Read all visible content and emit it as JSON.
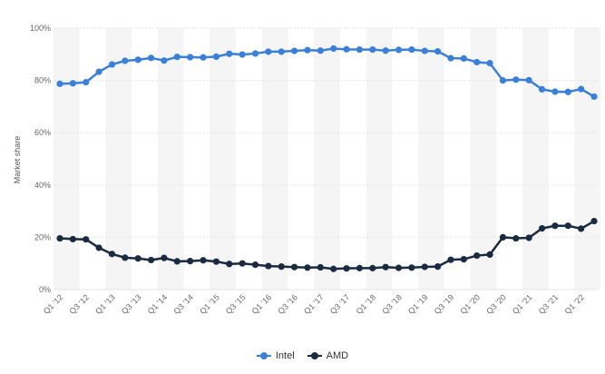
{
  "chart_data": {
    "type": "line",
    "ylabel": "Market share",
    "xlabel": "",
    "title": "",
    "ylim": [
      0,
      100
    ],
    "y_ticks": [
      "0%",
      "20%",
      "40%",
      "60%",
      "80%",
      "100%"
    ],
    "x_tick_labels": [
      "Q1 '12",
      "Q3 '12",
      "Q1 '13",
      "Q3 '13",
      "Q1 '14",
      "Q3 '14",
      "Q1 '15",
      "Q3 '15",
      "Q1 '16",
      "Q3 '16",
      "Q1 '17",
      "Q3 '17",
      "Q1 '18",
      "Q3 '18",
      "Q1 '19",
      "Q3 '19",
      "Q1 '20",
      "Q3 '20",
      "Q1 '21",
      "Q3 '21",
      "Q1 '22"
    ],
    "categories": [
      "Q1 '12",
      "Q2 '12",
      "Q3 '12",
      "Q4 '12",
      "Q1 '13",
      "Q2 '13",
      "Q3 '13",
      "Q4 '13",
      "Q1 '14",
      "Q2 '14",
      "Q3 '14",
      "Q4 '14",
      "Q1 '15",
      "Q2 '15",
      "Q3 '15",
      "Q4 '15",
      "Q1 '16",
      "Q2 '16",
      "Q3 '16",
      "Q4 '16",
      "Q1 '17",
      "Q2 '17",
      "Q3 '17",
      "Q4 '17",
      "Q1 '18",
      "Q2 '18",
      "Q3 '18",
      "Q4 '18",
      "Q1 '19",
      "Q2 '19",
      "Q3 '19",
      "Q4 '19",
      "Q1 '20",
      "Q2 '20",
      "Q3 '20",
      "Q4 '20",
      "Q1 '21",
      "Q2 '21",
      "Q3 '21",
      "Q4 '21",
      "Q1 '22",
      "Q2 '22"
    ],
    "grid": true,
    "legend_position": "bottom-center",
    "series": [
      {
        "name": "Intel",
        "color": "#3b80d8",
        "values": [
          78.7,
          78.9,
          79.3,
          83.3,
          86.1,
          87.5,
          87.9,
          88.6,
          87.6,
          89.0,
          88.9,
          88.8,
          89.1,
          90.2,
          89.9,
          90.3,
          91.0,
          91.0,
          91.3,
          91.6,
          91.4,
          92.2,
          91.9,
          91.8,
          91.8,
          91.4,
          91.7,
          91.8,
          91.3,
          91.1,
          88.5,
          88.4,
          87.0,
          86.6,
          80.0,
          80.3,
          80.1,
          76.6,
          75.7,
          75.6,
          76.7,
          73.8
        ]
      },
      {
        "name": "AMD",
        "color": "#1a2a40",
        "values": [
          19.6,
          19.3,
          19.2,
          16.0,
          13.6,
          12.2,
          11.9,
          11.3,
          12.1,
          10.8,
          10.9,
          11.2,
          10.7,
          9.8,
          10.0,
          9.5,
          9.0,
          8.8,
          8.6,
          8.4,
          8.5,
          7.9,
          8.1,
          8.2,
          8.2,
          8.6,
          8.3,
          8.4,
          8.7,
          8.8,
          11.4,
          11.6,
          13.0,
          13.4,
          20.0,
          19.6,
          19.8,
          23.4,
          24.4,
          24.4,
          23.3,
          26.2
        ]
      }
    ]
  },
  "legend": {
    "items": [
      {
        "label": "Intel",
        "color": "#3b80d8"
      },
      {
        "label": "AMD",
        "color": "#1a2a40"
      }
    ]
  }
}
